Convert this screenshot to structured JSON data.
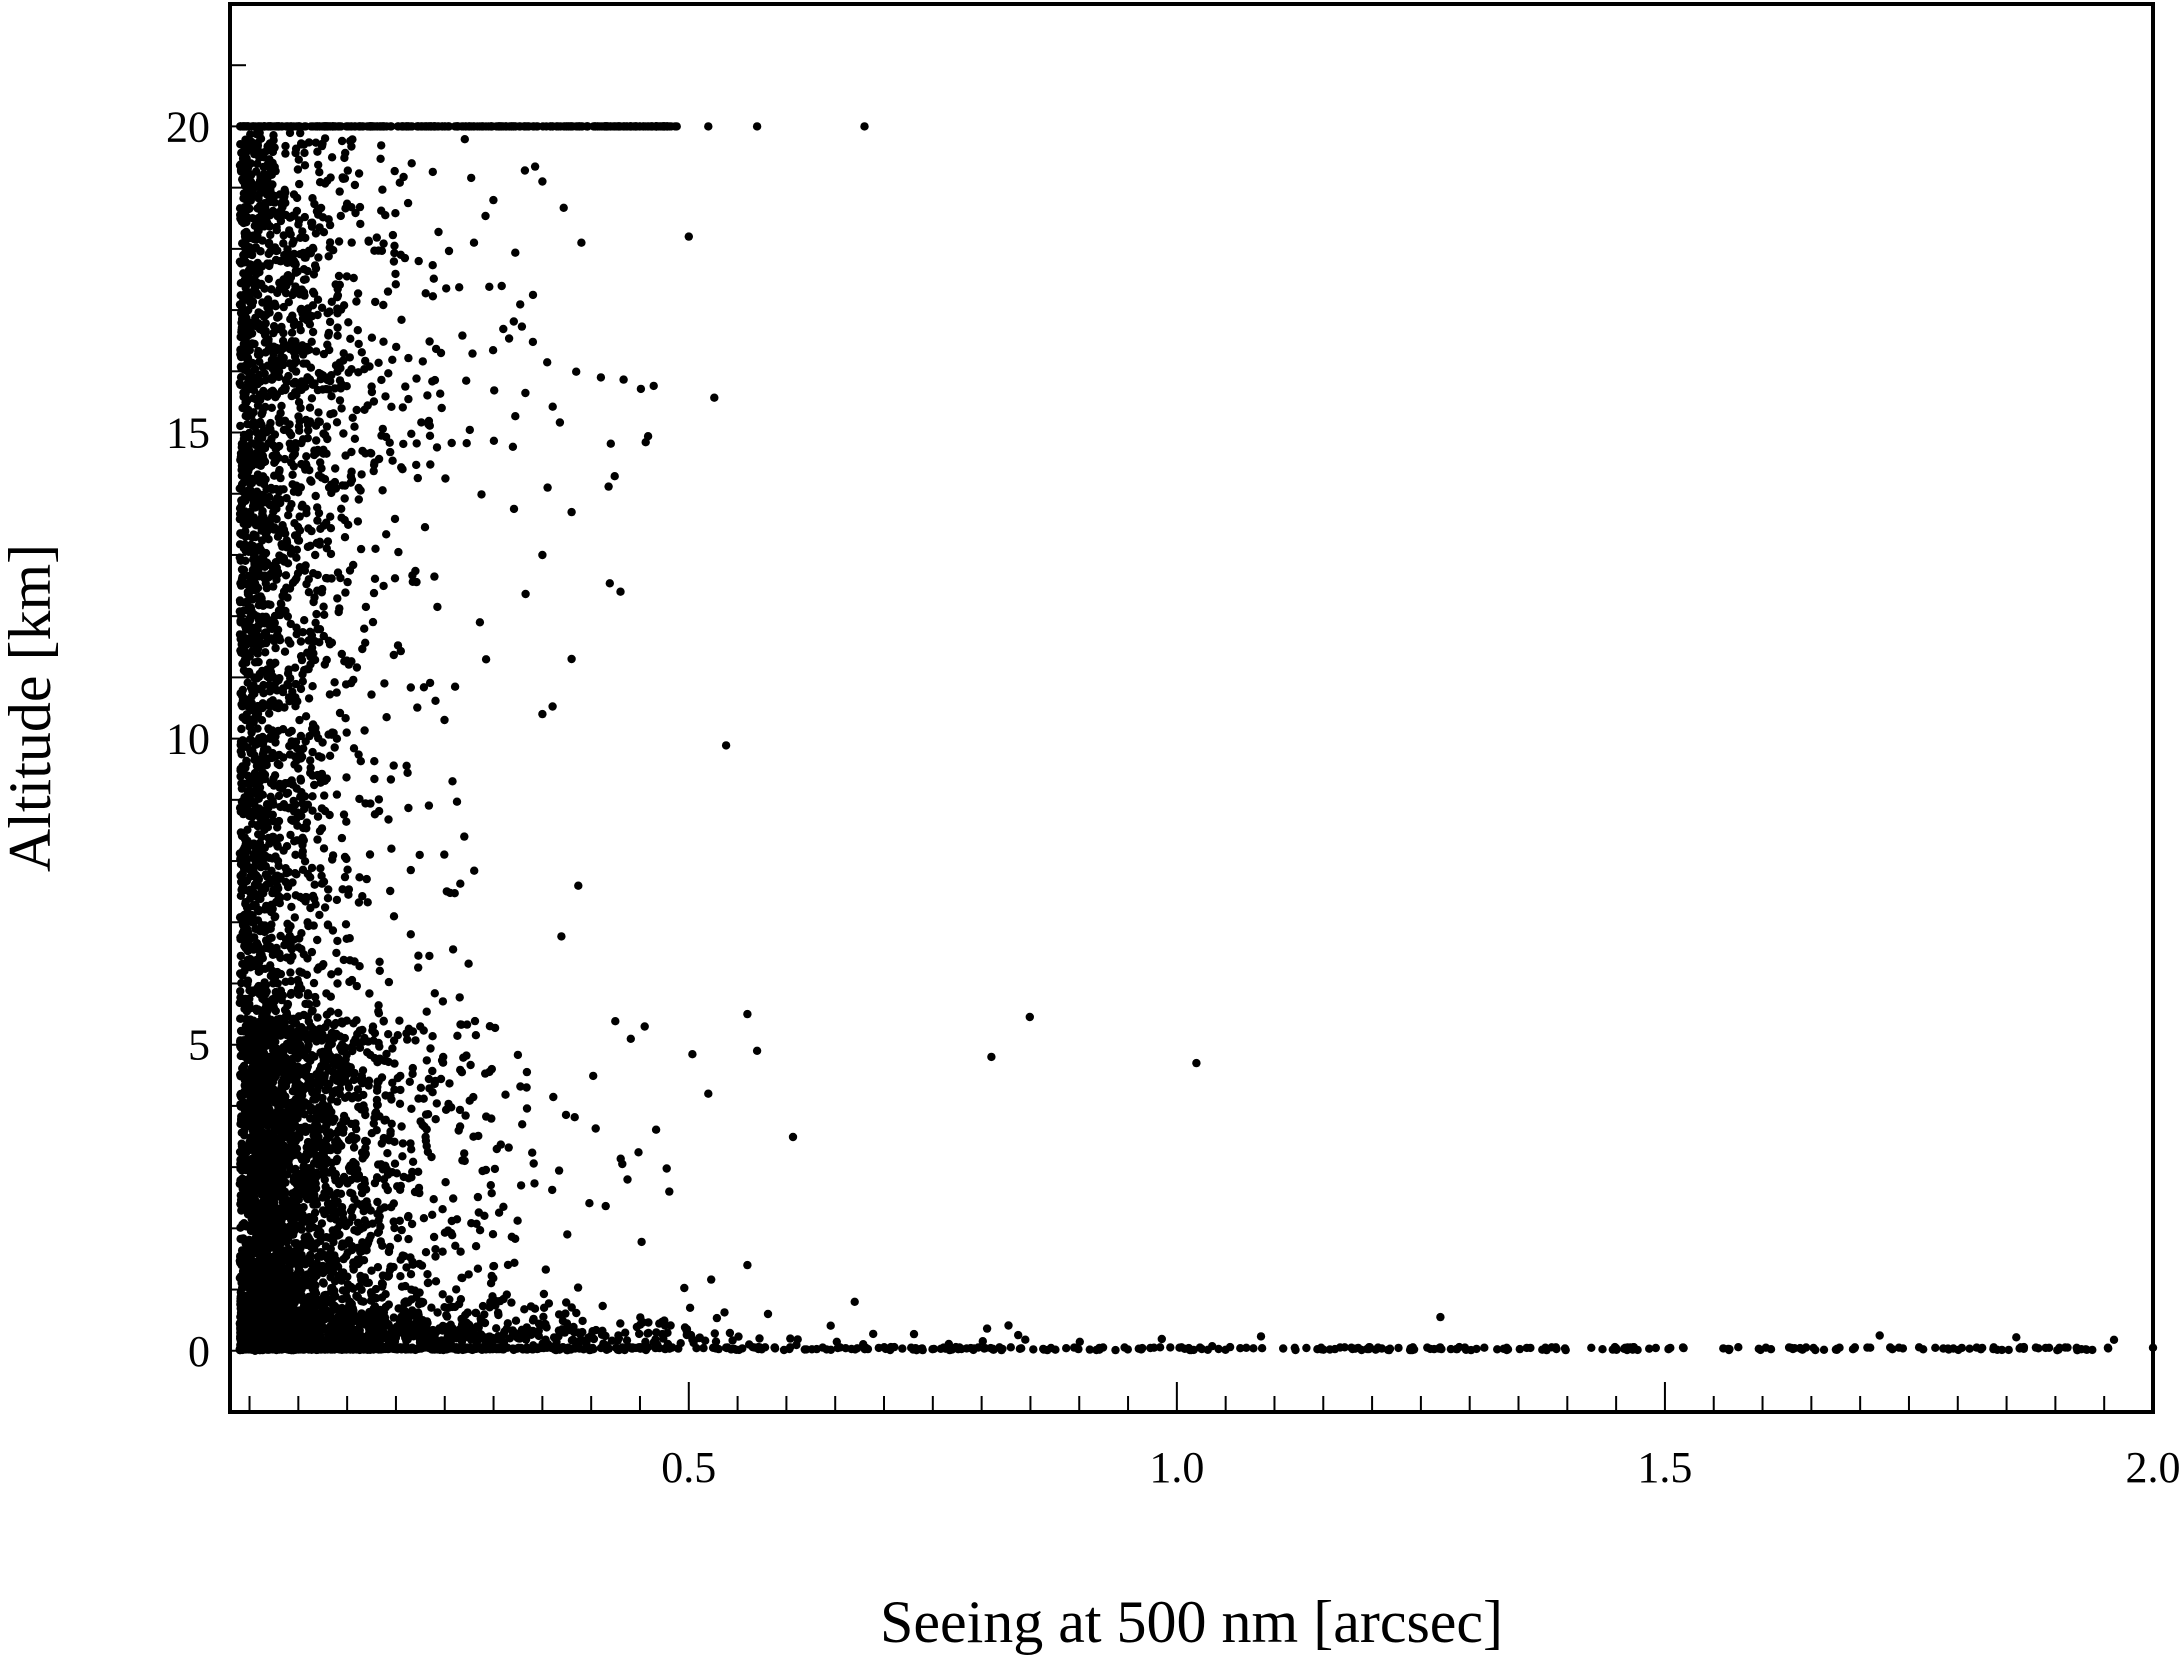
{
  "chart_data": {
    "type": "scatter",
    "title": "",
    "xlabel": "Seeing at 500 nm [arcsec]",
    "ylabel": "Altitude [km]",
    "xlim": [
      0.03,
      2.0
    ],
    "ylim": [
      -1,
      22
    ],
    "x_ticks": [
      {
        "value": 0.5,
        "label": "0.5"
      },
      {
        "value": 1.0,
        "label": "1.0"
      },
      {
        "value": 1.5,
        "label": "1.5"
      },
      {
        "value": 2.0,
        "label": "2.0"
      }
    ],
    "y_ticks": [
      {
        "value": 0,
        "label": "0"
      },
      {
        "value": 5,
        "label": "5"
      },
      {
        "value": 10,
        "label": "10"
      },
      {
        "value": 15,
        "label": "15"
      },
      {
        "value": 20,
        "label": "20"
      }
    ],
    "grid": false,
    "legend": "none",
    "marker_color": "#000000",
    "outliers": [
      [
        0.68,
        20
      ],
      [
        0.57,
        20
      ],
      [
        0.52,
        20
      ],
      [
        0.5,
        18.2
      ],
      [
        0.39,
        18.1
      ],
      [
        0.35,
        19.1
      ],
      [
        0.28,
        18.1
      ],
      [
        0.41,
        15.9
      ],
      [
        0.43,
        12.4
      ],
      [
        0.38,
        11.3
      ],
      [
        0.35,
        10.4
      ],
      [
        0.38,
        13.7
      ],
      [
        0.35,
        13
      ],
      [
        0.27,
        8.4
      ],
      [
        0.56,
        5.5
      ],
      [
        0.57,
        4.9
      ],
      [
        0.81,
        4.8
      ],
      [
        1.02,
        4.7
      ],
      [
        0.52,
        4.2
      ],
      [
        0.48,
        2.6
      ],
      [
        0.56,
        1.4
      ],
      [
        0.67,
        0.8
      ],
      [
        1.27,
        0.55
      ],
      [
        1.72,
        0.25
      ],
      [
        1.86,
        0.22
      ],
      [
        1.96,
        0.18
      ],
      [
        2.0,
        0.05
      ]
    ]
  }
}
